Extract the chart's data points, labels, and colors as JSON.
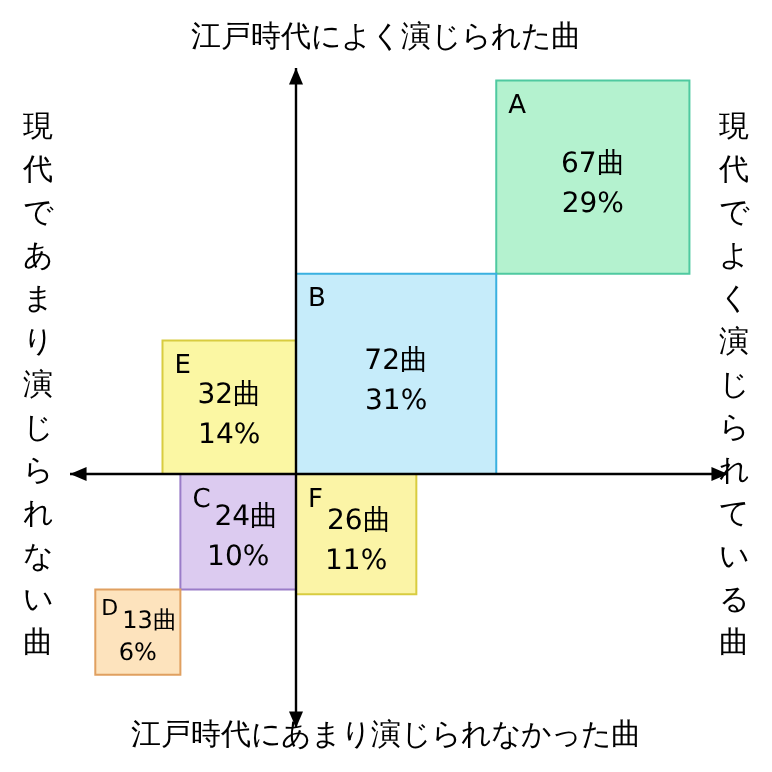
{
  "chart_data": {
    "type": "other",
    "annotations": [
      "江戸時代によく演じられた曲",
      "江戸時代にあまり演じられなかった曲",
      "現代であまり演じられない曲",
      "現代でよく演じられている曲"
    ],
    "categories": [
      "A",
      "B",
      "C",
      "D",
      "E",
      "F"
    ],
    "values": [
      67,
      72,
      24,
      13,
      32,
      26
    ],
    "value_labels": [
      "67曲\n29%",
      "72曲\n31%",
      "24曲\n10%",
      "13曲\n6%",
      "32曲\n14%",
      "26曲\n11%"
    ],
    "colors": [
      "#b4f2cf",
      "#c6ecfa",
      "#dccbf0",
      "#fde3bd",
      "#fbf7a3",
      "#fbf4a6"
    ]
  }
}
